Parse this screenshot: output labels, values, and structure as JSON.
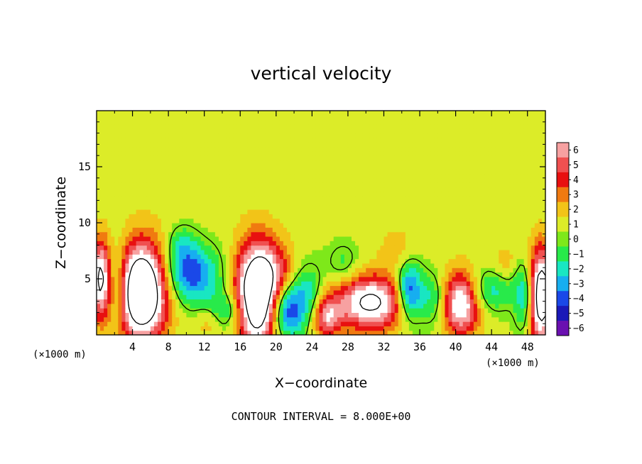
{
  "chart_data": {
    "type": "heatmap",
    "title": "vertical velocity",
    "xlabel": "X−coordinate",
    "ylabel": "Z−coordinate",
    "x_unit_label": "(×1000 m)",
    "y_unit_label": "(×1000 m)",
    "xlim": [
      0,
      50
    ],
    "ylim": [
      0,
      20
    ],
    "x_ticks": [
      4,
      8,
      12,
      16,
      20,
      24,
      28,
      32,
      36,
      40,
      44,
      48
    ],
    "y_ticks": [
      5,
      10,
      15
    ],
    "colorbar": {
      "levels": [
        6,
        5,
        4,
        3,
        2,
        1,
        0,
        -1,
        -2,
        -3,
        -4,
        -5,
        -6
      ],
      "level_labels": [
        "6",
        "5",
        "4",
        "3",
        "2",
        "1",
        "0",
        "−1",
        "−2",
        "−3",
        "−4",
        "−5",
        "−6"
      ],
      "colors": [
        "#f7a1a1",
        "#f05050",
        "#e81010",
        "#f07a10",
        "#f2c418",
        "#dcec28",
        "#7ee81a",
        "#28ea4a",
        "#19e6c2",
        "#17aef0",
        "#1a48e8",
        "#1a18b8",
        "#6a10b0"
      ]
    },
    "features": [
      {
        "x": 5.0,
        "z": 3.9,
        "amp": 12,
        "sx": 2.0,
        "sz": 3.0
      },
      {
        "x": 18.0,
        "z": 3.6,
        "amp": 12,
        "sx": 1.7,
        "sz": 3.2
      },
      {
        "x": 30.5,
        "z": 2.9,
        "amp": 8,
        "sx": 2.8,
        "sz": 1.7
      },
      {
        "x": 40.6,
        "z": 2.9,
        "amp": 8,
        "sx": 1.5,
        "sz": 2.0
      },
      {
        "x": 25.6,
        "z": 1.6,
        "amp": 5,
        "sx": 1.1,
        "sz": 1.3
      },
      {
        "x": 49.5,
        "z": 3.5,
        "amp": 10,
        "sx": 1.0,
        "sz": 3.0
      },
      {
        "x": 0.5,
        "z": 5.0,
        "amp": 8,
        "sx": 0.8,
        "sz": 2.5
      },
      {
        "x": 10.5,
        "z": 5.4,
        "amp": -5,
        "sx": 2.2,
        "sz": 1.8
      },
      {
        "x": 21.0,
        "z": 2.2,
        "amp": -6,
        "sx": 1.4,
        "sz": 1.8
      },
      {
        "x": 34.8,
        "z": 3.9,
        "amp": -6,
        "sx": 1.0,
        "sz": 1.8
      },
      {
        "x": 2.2,
        "z": 4.5,
        "amp": -4,
        "sx": 1.0,
        "sz": 2.5
      },
      {
        "x": 14.5,
        "z": 2.2,
        "amp": -3,
        "sx": 1.5,
        "sz": 1.2
      },
      {
        "x": 23.5,
        "z": 3.6,
        "amp": -3,
        "sx": 1.2,
        "sz": 1.8
      },
      {
        "x": 37.5,
        "z": 3.2,
        "amp": -3,
        "sx": 1.2,
        "sz": 1.6
      },
      {
        "x": 43.5,
        "z": 4.0,
        "amp": -3,
        "sx": 2.0,
        "sz": 1.3
      },
      {
        "x": 47.8,
        "z": 3.5,
        "amp": -4,
        "sx": 0.8,
        "sz": 2.2
      },
      {
        "x": 20.5,
        "z": 5.6,
        "amp": 2,
        "sx": 1.5,
        "sz": 2.0
      },
      {
        "x": 9.5,
        "z": 8.0,
        "amp": -2,
        "sx": 1.2,
        "sz": 1.3
      },
      {
        "x": 27.5,
        "z": 6.2,
        "amp": -1.8,
        "sx": 1.2,
        "sz": 1.3
      },
      {
        "x": 33.5,
        "z": 7.5,
        "amp": 1.5,
        "sx": 1.5,
        "sz": 1.5
      },
      {
        "x": 12.5,
        "z": 1.2,
        "amp": 1.8,
        "sx": 1.0,
        "sz": 1.0
      },
      {
        "x": 45.5,
        "z": 6.5,
        "amp": 1.5,
        "sx": 1.0,
        "sz": 1.2
      },
      {
        "x": 12.0,
        "z": 14.0,
        "amp": 0.5,
        "sx": 5.0,
        "sz": 3.0
      },
      {
        "x": 35.0,
        "z": 15.0,
        "amp": 0.6,
        "sx": 5.0,
        "sz": 3.0
      }
    ]
  },
  "footer": {
    "contour_interval": "CONTOUR INTERVAL = 8.000E+00"
  }
}
